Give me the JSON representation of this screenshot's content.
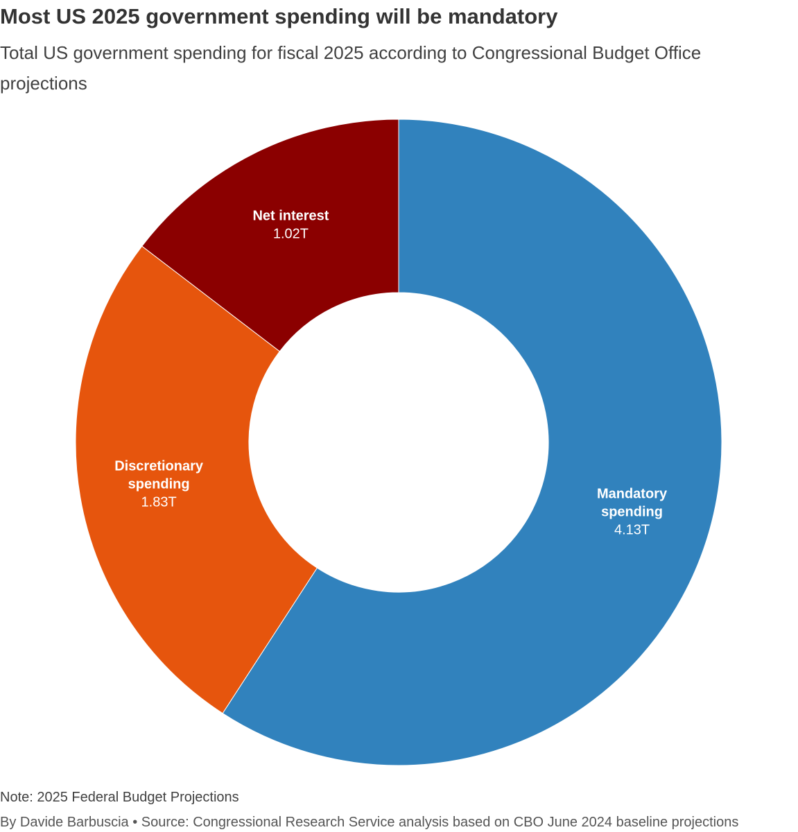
{
  "header": {
    "title": "Most US 2025 government spending will be mandatory",
    "subtitle": "Total US government spending for fiscal 2025 according to Congressional Budget Office projections"
  },
  "chart_data": {
    "type": "pie",
    "variant": "donut",
    "title": "Most US 2025 government spending will be mandatory",
    "subtitle": "Total US government spending for fiscal 2025 according to Congressional Budget Office projections",
    "unit": "trillion USD",
    "slices": [
      {
        "label_lines": [
          "Mandatory",
          "spending"
        ],
        "label": "Mandatory spending",
        "value": 4.13,
        "value_label": "4.13T",
        "color": "#3182bd"
      },
      {
        "label_lines": [
          "Discretionary",
          "spending"
        ],
        "label": "Discretionary spending",
        "value": 1.83,
        "value_label": "1.83T",
        "color": "#e6550d"
      },
      {
        "label_lines": [
          "Net interest"
        ],
        "label": "Net interest",
        "value": 1.02,
        "value_label": "1.02T",
        "color": "#8b0000"
      }
    ],
    "start": "12 o'clock",
    "direction": "clockwise"
  },
  "footer": {
    "note": "Note: 2025 Federal Budget Projections",
    "byline": "By Davide Barbuscia • Source: Congressional Research Service analysis based on CBO June 2024 baseline projections"
  }
}
